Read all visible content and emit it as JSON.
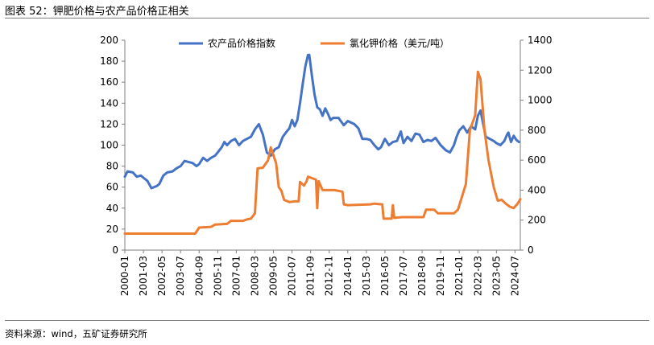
{
  "figure": {
    "title": "图表 52：钾肥价格与农产品价格正相关",
    "source": "资料来源：wind，五矿证券研究所"
  },
  "chart_data": {
    "type": "line",
    "x_categories": [
      "2000-01",
      "2001-03",
      "2002-05",
      "2003-07",
      "2004-09",
      "2005-11",
      "2007-01",
      "2008-03",
      "2009-05",
      "2010-07",
      "2011-09",
      "2012-11",
      "2014-01",
      "2015-03",
      "2016-05",
      "2017-07",
      "2018-09",
      "2019-11",
      "2021-01",
      "2022-03",
      "2023-05",
      "2024-07"
    ],
    "y_left": {
      "min": 0,
      "max": 200,
      "ticks": [
        "0",
        "20",
        "40",
        "60",
        "80",
        "100",
        "120",
        "140",
        "160",
        "180",
        "200"
      ]
    },
    "y_right": {
      "min": 0,
      "max": 1400,
      "ticks": [
        "0",
        "200",
        "400",
        "600",
        "800",
        "1000",
        "1200",
        "1400"
      ]
    },
    "legend_position": "top",
    "grid": false,
    "series": [
      {
        "name": "农产品价格指数",
        "axis": "left",
        "color": "#4472C4",
        "points": [
          [
            "2000-01",
            70
          ],
          [
            "2000-03",
            75
          ],
          [
            "2000-07",
            74
          ],
          [
            "2000-10",
            70
          ],
          [
            "2001-01",
            71
          ],
          [
            "2001-03",
            69
          ],
          [
            "2001-06",
            66
          ],
          [
            "2001-09",
            59
          ],
          [
            "2002-01",
            61
          ],
          [
            "2002-03",
            63
          ],
          [
            "2002-06",
            71
          ],
          [
            "2002-09",
            74
          ],
          [
            "2003-01",
            75
          ],
          [
            "2003-04",
            78
          ],
          [
            "2003-07",
            80
          ],
          [
            "2003-10",
            85
          ],
          [
            "2004-01",
            84
          ],
          [
            "2004-04",
            83
          ],
          [
            "2004-07",
            80
          ],
          [
            "2004-09",
            82
          ],
          [
            "2004-12",
            88
          ],
          [
            "2005-03",
            85
          ],
          [
            "2005-06",
            88
          ],
          [
            "2005-09",
            90
          ],
          [
            "2005-11",
            93
          ],
          [
            "2006-02",
            98
          ],
          [
            "2006-04",
            103
          ],
          [
            "2006-06",
            100
          ],
          [
            "2006-09",
            104
          ],
          [
            "2006-12",
            106
          ],
          [
            "2007-03",
            100
          ],
          [
            "2007-06",
            104
          ],
          [
            "2007-09",
            106
          ],
          [
            "2007-12",
            108
          ],
          [
            "2008-03",
            115
          ],
          [
            "2008-06",
            120
          ],
          [
            "2008-09",
            110
          ],
          [
            "2008-12",
            93
          ],
          [
            "2009-03",
            90
          ],
          [
            "2009-06",
            96
          ],
          [
            "2009-09",
            98
          ],
          [
            "2009-12",
            108
          ],
          [
            "2010-03",
            113
          ],
          [
            "2010-05",
            116
          ],
          [
            "2010-07",
            124
          ],
          [
            "2010-09",
            118
          ],
          [
            "2010-11",
            124
          ],
          [
            "2011-01",
            140
          ],
          [
            "2011-03",
            158
          ],
          [
            "2011-05",
            175
          ],
          [
            "2011-07",
            186
          ],
          [
            "2011-08",
            186
          ],
          [
            "2011-10",
            166
          ],
          [
            "2011-12",
            148
          ],
          [
            "2012-02",
            136
          ],
          [
            "2012-04",
            134
          ],
          [
            "2012-06",
            128
          ],
          [
            "2012-08",
            135
          ],
          [
            "2012-10",
            130
          ],
          [
            "2012-12",
            124
          ],
          [
            "2013-02",
            126
          ],
          [
            "2013-06",
            126
          ],
          [
            "2013-10",
            119
          ],
          [
            "2014-01",
            123
          ],
          [
            "2014-06",
            120
          ],
          [
            "2014-09",
            116
          ],
          [
            "2014-12",
            106
          ],
          [
            "2015-03",
            106
          ],
          [
            "2015-06",
            105
          ],
          [
            "2015-09",
            100
          ],
          [
            "2015-12",
            96
          ],
          [
            "2016-02",
            98
          ],
          [
            "2016-05",
            106
          ],
          [
            "2016-08",
            100
          ],
          [
            "2016-11",
            103
          ],
          [
            "2017-02",
            104
          ],
          [
            "2017-05",
            113
          ],
          [
            "2017-07",
            102
          ],
          [
            "2017-10",
            108
          ],
          [
            "2018-01",
            104
          ],
          [
            "2018-04",
            111
          ],
          [
            "2018-07",
            110
          ],
          [
            "2018-10",
            103
          ],
          [
            "2019-01",
            105
          ],
          [
            "2019-04",
            104
          ],
          [
            "2019-07",
            107
          ],
          [
            "2019-11",
            100
          ],
          [
            "2020-03",
            95
          ],
          [
            "2020-06",
            93
          ],
          [
            "2020-09",
            100
          ],
          [
            "2020-11",
            108
          ],
          [
            "2021-01",
            114
          ],
          [
            "2021-04",
            118
          ],
          [
            "2021-07",
            112
          ],
          [
            "2021-10",
            118
          ],
          [
            "2022-01",
            115
          ],
          [
            "2022-03",
            128
          ],
          [
            "2022-05",
            133
          ],
          [
            "2022-07",
            120
          ],
          [
            "2022-09",
            108
          ],
          [
            "2022-12",
            106
          ],
          [
            "2023-03",
            104
          ],
          [
            "2023-05",
            102
          ],
          [
            "2023-08",
            100
          ],
          [
            "2023-11",
            104
          ],
          [
            "2024-01",
            110
          ],
          [
            "2024-02",
            112
          ],
          [
            "2024-04",
            103
          ],
          [
            "2024-06",
            109
          ],
          [
            "2024-08",
            105
          ],
          [
            "2024-10",
            103
          ]
        ]
      },
      {
        "name": "氯化钾价格（美元/吨）",
        "axis": "right",
        "color": "#ED7D31",
        "points": [
          [
            "2000-01",
            110
          ],
          [
            "2004-06",
            110
          ],
          [
            "2004-09",
            150
          ],
          [
            "2005-06",
            155
          ],
          [
            "2005-09",
            170
          ],
          [
            "2006-06",
            175
          ],
          [
            "2006-09",
            195
          ],
          [
            "2007-06",
            195
          ],
          [
            "2007-09",
            205
          ],
          [
            "2007-12",
            210
          ],
          [
            "2008-03",
            245
          ],
          [
            "2008-05",
            545
          ],
          [
            "2008-09",
            550
          ],
          [
            "2009-01",
            600
          ],
          [
            "2009-03",
            685
          ],
          [
            "2009-07",
            580
          ],
          [
            "2009-09",
            420
          ],
          [
            "2009-11",
            395
          ],
          [
            "2010-01",
            335
          ],
          [
            "2010-05",
            320
          ],
          [
            "2010-09",
            325
          ],
          [
            "2010-12",
            325
          ],
          [
            "2011-01",
            455
          ],
          [
            "2011-04",
            430
          ],
          [
            "2011-06",
            460
          ],
          [
            "2011-07",
            490
          ],
          [
            "2011-10",
            480
          ],
          [
            "2012-01",
            470
          ],
          [
            "2012-02",
            280
          ],
          [
            "2012-03",
            460
          ],
          [
            "2012-06",
            400
          ],
          [
            "2012-09",
            400
          ],
          [
            "2013-03",
            400
          ],
          [
            "2013-09",
            390
          ],
          [
            "2013-10",
            305
          ],
          [
            "2014-01",
            300
          ],
          [
            "2015-06",
            305
          ],
          [
            "2015-09",
            310
          ],
          [
            "2016-03",
            305
          ],
          [
            "2016-04",
            210
          ],
          [
            "2016-10",
            210
          ],
          [
            "2016-11",
            300
          ],
          [
            "2016-12",
            215
          ],
          [
            "2017-06",
            220
          ],
          [
            "2018-10",
            220
          ],
          [
            "2018-12",
            270
          ],
          [
            "2019-06",
            270
          ],
          [
            "2019-09",
            245
          ],
          [
            "2020-09",
            245
          ],
          [
            "2020-12",
            270
          ],
          [
            "2021-06",
            440
          ],
          [
            "2021-09",
            800
          ],
          [
            "2022-01",
            900
          ],
          [
            "2022-03",
            1190
          ],
          [
            "2022-05",
            1140
          ],
          [
            "2022-08",
            800
          ],
          [
            "2022-11",
            600
          ],
          [
            "2023-03",
            420
          ],
          [
            "2023-06",
            330
          ],
          [
            "2023-09",
            335
          ],
          [
            "2023-12",
            310
          ],
          [
            "2024-03",
            290
          ],
          [
            "2024-06",
            280
          ],
          [
            "2024-09",
            310
          ],
          [
            "2024-11",
            340
          ]
        ]
      }
    ]
  }
}
